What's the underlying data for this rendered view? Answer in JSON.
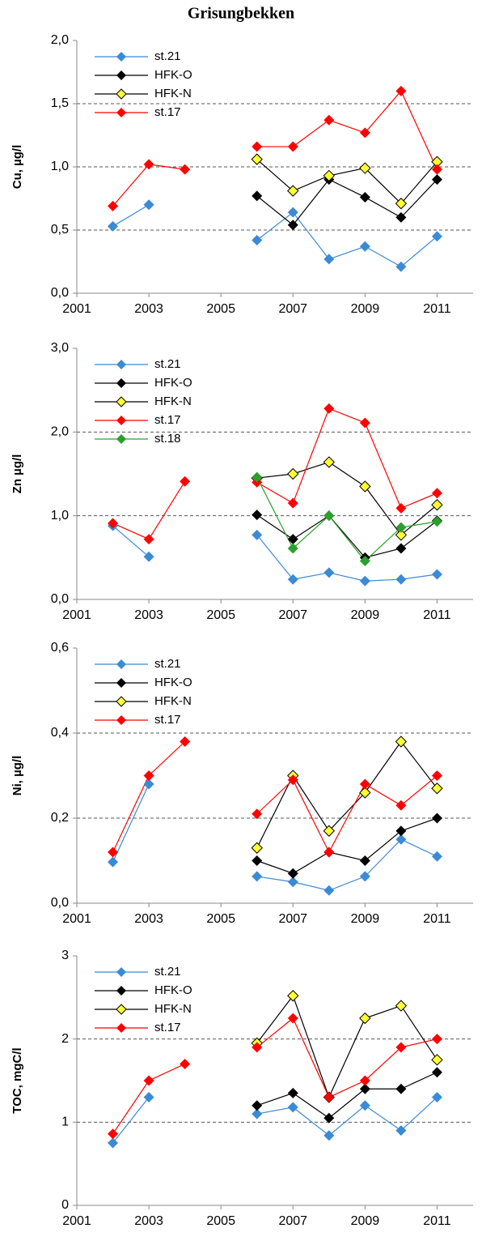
{
  "title": "Grisungbekken",
  "chart_data": [
    {
      "type": "line",
      "ylabel": "Cu, µg/l",
      "x": [
        2002,
        2003,
        2004,
        2005,
        2006,
        2007,
        2008,
        2009,
        2010,
        2011
      ],
      "xlim": [
        2001,
        2012
      ],
      "xticks": [
        2001,
        2003,
        2005,
        2007,
        2009,
        2011
      ],
      "ylim": [
        0,
        2
      ],
      "yticks": [
        {
          "value": 0,
          "label": "0,0"
        },
        {
          "value": 0.5,
          "label": "0,5"
        },
        {
          "value": 1,
          "label": "1,0"
        },
        {
          "value": 1.5,
          "label": "1,5"
        },
        {
          "value": 2,
          "label": "2,0"
        }
      ],
      "grid": true,
      "legend": "upper left",
      "series": [
        {
          "name": "st.21",
          "color": "#3b8ad4",
          "values": [
            0.53,
            0.7,
            null,
            null,
            0.42,
            0.64,
            0.27,
            0.37,
            0.21,
            0.45
          ]
        },
        {
          "name": "HFK-O",
          "color": "#000000",
          "values": [
            null,
            null,
            null,
            null,
            0.77,
            0.54,
            0.9,
            0.76,
            0.6,
            0.9
          ]
        },
        {
          "name": "HFK-N",
          "color": "#000000",
          "marker_fill": "#ffff33",
          "values": [
            null,
            null,
            null,
            null,
            1.06,
            0.81,
            0.93,
            0.99,
            0.71,
            1.04
          ]
        },
        {
          "name": "st.17",
          "color": "#ff0000",
          "values": [
            0.69,
            1.02,
            0.98,
            null,
            1.16,
            1.16,
            1.37,
            1.27,
            1.6,
            0.98
          ]
        }
      ]
    },
    {
      "type": "line",
      "ylabel": "Zn µg/l",
      "x": [
        2002,
        2003,
        2004,
        2005,
        2006,
        2007,
        2008,
        2009,
        2010,
        2011
      ],
      "xlim": [
        2001,
        2012
      ],
      "xticks": [
        2001,
        2003,
        2005,
        2007,
        2009,
        2011
      ],
      "ylim": [
        0,
        3
      ],
      "yticks": [
        {
          "value": 0,
          "label": "0,0"
        },
        {
          "value": 1,
          "label": "1,0"
        },
        {
          "value": 2,
          "label": "2,0"
        },
        {
          "value": 3,
          "label": "3,0"
        }
      ],
      "grid": true,
      "legend": "upper left",
      "series": [
        {
          "name": "st.21",
          "color": "#3b8ad4",
          "values": [
            0.88,
            0.51,
            null,
            null,
            0.77,
            0.24,
            0.32,
            0.22,
            0.24,
            0.3
          ]
        },
        {
          "name": "HFK-O",
          "color": "#000000",
          "values": [
            null,
            null,
            null,
            null,
            1.01,
            0.72,
            1.0,
            0.5,
            0.61,
            0.94
          ]
        },
        {
          "name": "HFK-N",
          "color": "#000000",
          "marker_fill": "#ffff33",
          "values": [
            null,
            null,
            null,
            null,
            1.45,
            1.5,
            1.64,
            1.35,
            0.77,
            1.13
          ]
        },
        {
          "name": "st.17",
          "color": "#ff0000",
          "values": [
            0.91,
            0.72,
            1.41,
            null,
            1.4,
            1.15,
            2.28,
            2.11,
            1.09,
            1.27
          ]
        },
        {
          "name": "st.18",
          "color": "#2ca02c",
          "values": [
            null,
            null,
            null,
            null,
            1.46,
            0.61,
            1.0,
            0.46,
            0.86,
            0.93
          ]
        }
      ]
    },
    {
      "type": "line",
      "ylabel": "Ni, µg/l",
      "x": [
        2002,
        2003,
        2004,
        2005,
        2006,
        2007,
        2008,
        2009,
        2010,
        2011
      ],
      "xlim": [
        2001,
        2012
      ],
      "xticks": [
        2001,
        2003,
        2005,
        2007,
        2009,
        2011
      ],
      "ylim": [
        0,
        0.6
      ],
      "yticks": [
        {
          "value": 0,
          "label": "0,0"
        },
        {
          "value": 0.2,
          "label": "0,2"
        },
        {
          "value": 0.4,
          "label": "0,4"
        },
        {
          "value": 0.6,
          "label": "0,6"
        }
      ],
      "grid": true,
      "legend": "upper left",
      "series": [
        {
          "name": "st.21",
          "color": "#3b8ad4",
          "values": [
            0.097,
            0.28,
            null,
            null,
            0.063,
            0.05,
            0.03,
            0.063,
            0.15,
            0.11
          ]
        },
        {
          "name": "HFK-O",
          "color": "#000000",
          "values": [
            null,
            null,
            null,
            null,
            0.1,
            0.07,
            0.12,
            0.1,
            0.17,
            0.2
          ]
        },
        {
          "name": "HFK-N",
          "color": "#000000",
          "marker_fill": "#ffff33",
          "values": [
            null,
            null,
            null,
            null,
            0.13,
            0.3,
            0.17,
            0.26,
            0.38,
            0.27
          ]
        },
        {
          "name": "st.17",
          "color": "#ff0000",
          "values": [
            0.12,
            0.3,
            0.38,
            null,
            0.21,
            0.29,
            0.12,
            0.28,
            0.23,
            0.3
          ]
        }
      ]
    },
    {
      "type": "line",
      "ylabel": "TOC, mgC/l",
      "x": [
        2002,
        2003,
        2004,
        2005,
        2006,
        2007,
        2008,
        2009,
        2010,
        2011
      ],
      "xlim": [
        2001,
        2012
      ],
      "xticks": [
        2001,
        2003,
        2005,
        2007,
        2009,
        2011
      ],
      "ylim": [
        0,
        3
      ],
      "yticks": [
        0,
        1,
        2,
        3
      ],
      "grid": true,
      "legend": "upper left",
      "series": [
        {
          "name": "st.21",
          "color": "#3b8ad4",
          "values": [
            0.75,
            1.3,
            null,
            null,
            1.1,
            1.18,
            0.84,
            1.2,
            0.9,
            1.3
          ]
        },
        {
          "name": "HFK-O",
          "color": "#000000",
          "values": [
            null,
            null,
            null,
            null,
            1.2,
            1.35,
            1.05,
            1.4,
            1.4,
            1.6
          ]
        },
        {
          "name": "HFK-N",
          "color": "#000000",
          "marker_fill": "#ffff33",
          "values": [
            null,
            null,
            null,
            null,
            1.95,
            2.52,
            1.3,
            2.25,
            2.4,
            1.75
          ]
        },
        {
          "name": "st.17",
          "color": "#ff0000",
          "values": [
            0.86,
            1.5,
            1.7,
            null,
            1.9,
            2.25,
            1.3,
            1.5,
            1.9,
            2.0
          ]
        }
      ]
    }
  ]
}
